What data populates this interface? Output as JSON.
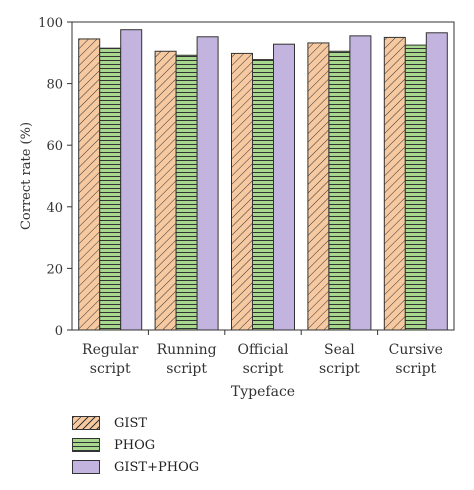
{
  "chart_data": {
    "type": "bar",
    "title": "",
    "xlabel": "Typeface",
    "ylabel": "Correct rate (%)",
    "ylim": [
      0,
      100
    ],
    "yticks": [
      0,
      20,
      40,
      60,
      80,
      100
    ],
    "grid": false,
    "legend_position": "bottom-left",
    "categories": [
      [
        "Regular",
        "script"
      ],
      [
        "Running",
        "script"
      ],
      [
        "Official",
        "script"
      ],
      [
        "Seal",
        "script"
      ],
      [
        "Cursive",
        "script"
      ]
    ],
    "series": [
      {
        "name": "GIST",
        "values": [
          94.5,
          90.5,
          89.8,
          93.2,
          95.0
        ],
        "color": "#f6c9a0",
        "pattern": "diagonal-hatch"
      },
      {
        "name": "PHOG",
        "values": [
          91.5,
          89.2,
          87.8,
          90.5,
          92.5
        ],
        "color": "#a8d88e",
        "pattern": "horizontal-hatch"
      },
      {
        "name": "GIST+PHOG",
        "values": [
          97.5,
          95.2,
          92.8,
          95.5,
          96.5
        ],
        "color": "#c3b4df",
        "pattern": "solid"
      }
    ]
  }
}
